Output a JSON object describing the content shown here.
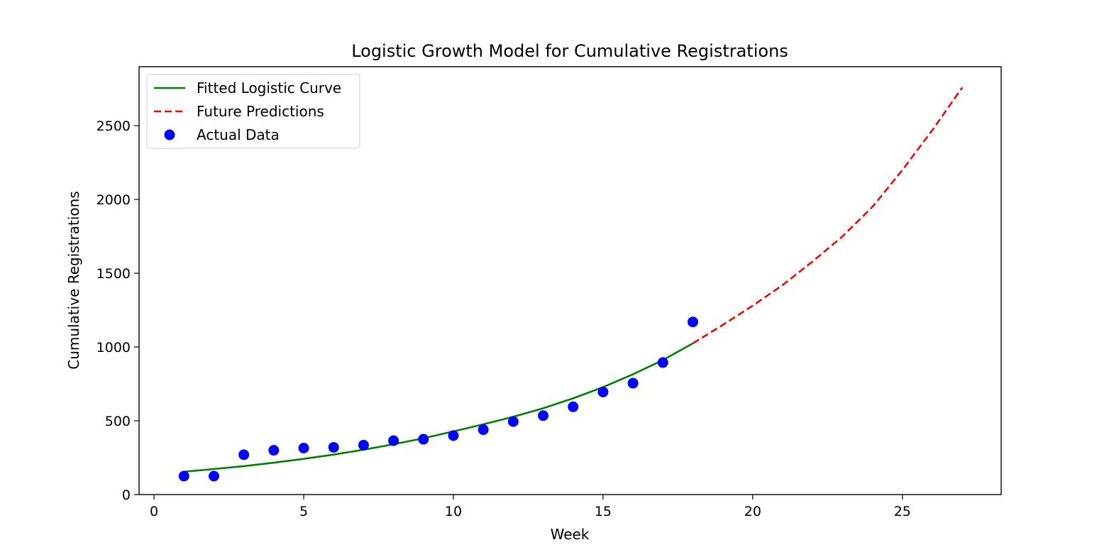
{
  "chart_data": {
    "type": "line",
    "title": "Logistic Growth Model for Cumulative Registrations",
    "xlabel": "Week",
    "ylabel": "Cumulative Registrations",
    "xlim": [
      -0.5,
      28.3
    ],
    "ylim": [
      0,
      2900
    ],
    "x_ticks": [
      0,
      5,
      10,
      15,
      20,
      25
    ],
    "y_ticks": [
      0,
      500,
      1000,
      1500,
      2000,
      2500
    ],
    "grid": false,
    "legend_position": "top-left",
    "series": [
      {
        "name": "Fitted Logistic Curve",
        "kind": "line",
        "style": "solid",
        "color": "#008000",
        "x": [
          1,
          2,
          3,
          4,
          5,
          6,
          7,
          8,
          9,
          10,
          11,
          12,
          13,
          14,
          15,
          16,
          17,
          18
        ],
        "y": [
          155,
          173,
          193,
          216,
          242,
          271,
          304,
          341,
          382,
          428,
          476,
          527,
          585,
          652,
          728,
          815,
          912,
          1025
        ]
      },
      {
        "name": "Future Predictions",
        "kind": "line",
        "style": "dashed",
        "color": "#ff0000",
        "x": [
          18,
          19,
          20,
          21,
          22,
          23,
          24,
          25,
          26,
          27
        ],
        "y": [
          1025,
          1150,
          1280,
          1420,
          1580,
          1750,
          1950,
          2200,
          2470,
          2760
        ]
      },
      {
        "name": "Actual Data",
        "kind": "scatter",
        "color": "#0000ff",
        "x": [
          1,
          2,
          3,
          4,
          5,
          6,
          7,
          8,
          9,
          10,
          11,
          12,
          13,
          14,
          15,
          16,
          17,
          18
        ],
        "y": [
          125,
          125,
          270,
          300,
          315,
          320,
          335,
          365,
          375,
          400,
          440,
          495,
          535,
          595,
          695,
          755,
          895,
          1170
        ]
      }
    ]
  }
}
